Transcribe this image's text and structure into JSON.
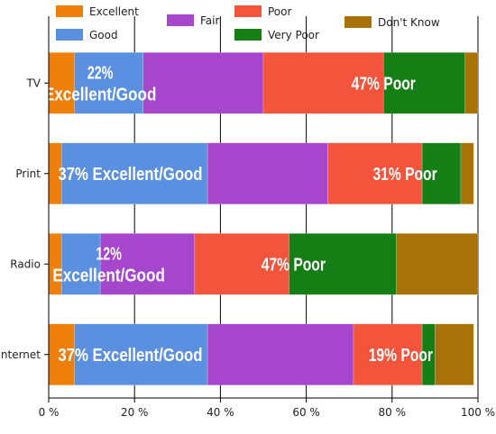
{
  "chart_data": {
    "type": "bar",
    "orientation": "horizontal",
    "stacked": true,
    "categories": [
      "TV",
      "Print",
      "Radio",
      "Internet"
    ],
    "series": [
      {
        "name": "Excellent",
        "values": [
          6,
          3,
          3,
          6
        ],
        "color": "#ef7f0b"
      },
      {
        "name": "Good",
        "values": [
          16,
          34,
          9,
          31
        ],
        "color": "#5b8fdf"
      },
      {
        "name": "Fair",
        "values": [
          28,
          28,
          22,
          34
        ],
        "color": "#a646cc"
      },
      {
        "name": "Poor",
        "values": [
          28,
          22,
          22,
          16
        ],
        "color": "#f2553c"
      },
      {
        "name": "Very Poor",
        "values": [
          19,
          9,
          25,
          3
        ],
        "color": "#157e15"
      },
      {
        "name": "Don't Know",
        "values": [
          3,
          3,
          19,
          9
        ],
        "color": "#a87209"
      }
    ],
    "xlim": [
      0,
      100
    ],
    "xticks": [
      "0 %",
      "20 %",
      "40 %",
      "60 %",
      "80 %",
      "100 %"
    ],
    "grid": true,
    "legend_position": "top",
    "annotations": [
      {
        "category": "TV",
        "lines": [
          "22%",
          "Excellent/Good"
        ],
        "center_value": 12
      },
      {
        "category": "TV",
        "lines": [
          "47% Poor"
        ],
        "center_value": 78
      },
      {
        "category": "Print",
        "lines": [
          "37% Excellent/Good"
        ],
        "center_value": 19
      },
      {
        "category": "Print",
        "lines": [
          "31% Poor"
        ],
        "center_value": 83
      },
      {
        "category": "Radio",
        "lines": [
          "12%",
          "Excellent/Good"
        ],
        "center_value": 14
      },
      {
        "category": "Radio",
        "lines": [
          "47% Poor"
        ],
        "center_value": 57
      },
      {
        "category": "Internet",
        "lines": [
          "37% Excellent/Good"
        ],
        "center_value": 19
      },
      {
        "category": "Internet",
        "lines": [
          "19% Poor"
        ],
        "center_value": 82
      }
    ]
  }
}
